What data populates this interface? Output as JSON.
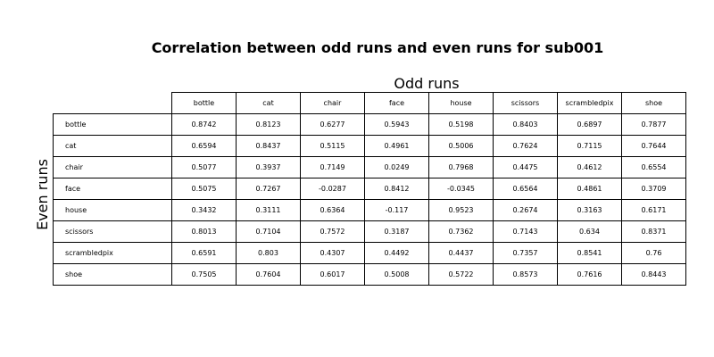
{
  "chart_data": {
    "type": "table",
    "title": "Correlation between odd runs and even runs for sub001",
    "column_axis_label": "Odd runs",
    "row_axis_label": "Even runs",
    "columns": [
      "bottle",
      "cat",
      "chair",
      "face",
      "house",
      "scissors",
      "scrambledpix",
      "shoe"
    ],
    "rows": [
      {
        "label": "bottle",
        "values": [
          "0.8742",
          "0.8123",
          "0.6277",
          "0.5943",
          "0.5198",
          "0.8403",
          "0.6897",
          "0.7877"
        ]
      },
      {
        "label": "cat",
        "values": [
          "0.6594",
          "0.8437",
          "0.5115",
          "0.4961",
          "0.5006",
          "0.7624",
          "0.7115",
          "0.7644"
        ]
      },
      {
        "label": "chair",
        "values": [
          "0.5077",
          "0.3937",
          "0.7149",
          "0.0249",
          "0.7968",
          "0.4475",
          "0.4612",
          "0.6554"
        ]
      },
      {
        "label": "face",
        "values": [
          "0.5075",
          "0.7267",
          "-0.0287",
          "0.8412",
          "-0.0345",
          "0.6564",
          "0.4861",
          "0.3709"
        ]
      },
      {
        "label": "house",
        "values": [
          "0.3432",
          "0.3111",
          "0.6364",
          "-0.117",
          "0.9523",
          "0.2674",
          "0.3163",
          "0.6171"
        ]
      },
      {
        "label": "scissors",
        "values": [
          "0.8013",
          "0.7104",
          "0.7572",
          "0.3187",
          "0.7362",
          "0.7143",
          "0.634",
          "0.8371"
        ]
      },
      {
        "label": "scrambledpix",
        "values": [
          "0.6591",
          "0.803",
          "0.4307",
          "0.4492",
          "0.4437",
          "0.7357",
          "0.8541",
          "0.76"
        ]
      },
      {
        "label": "shoe",
        "values": [
          "0.7505",
          "0.7604",
          "0.6017",
          "0.5008",
          "0.5722",
          "0.8573",
          "0.7616",
          "0.8443"
        ]
      }
    ]
  }
}
